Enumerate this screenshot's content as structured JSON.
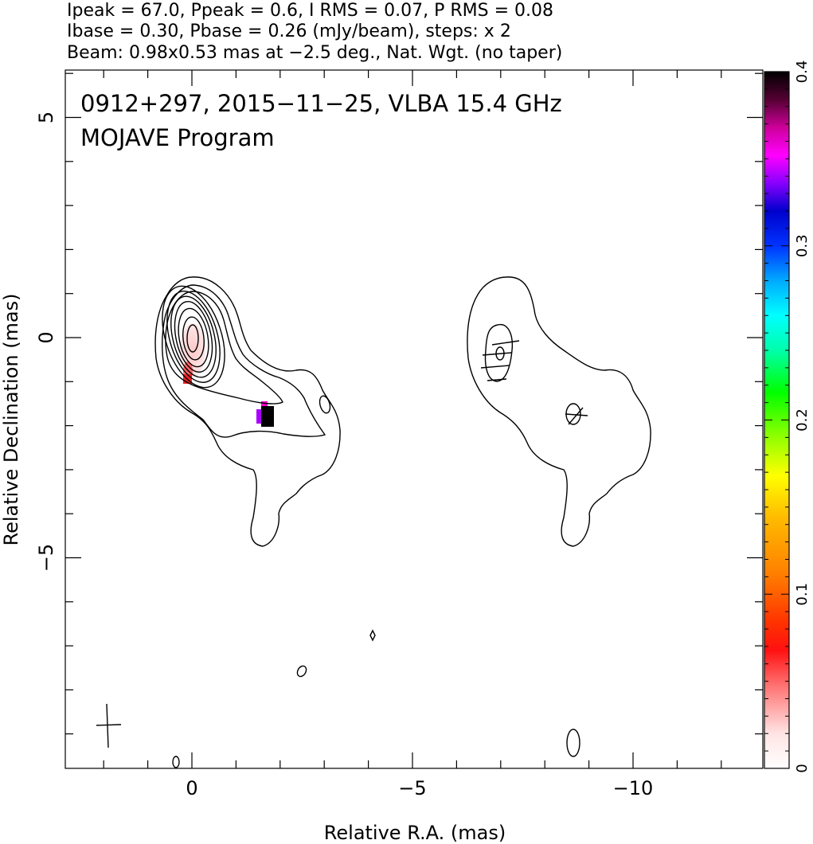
{
  "header": {
    "line1": "Ipeak = 67.0, Ppeak = 0.6, I RMS = 0.07, P RMS = 0.08",
    "line2": "Ibase = 0.30, Pbase = 0.26 (mJy/beam), steps: x 2",
    "line3": "Beam: 0.98x0.53 mas at −2.5 deg., Nat. Wgt. (no taper)"
  },
  "chart_data": {
    "type": "heatmap",
    "title": "0912+297, 2015−11−25, VLBA 15.4 GHz",
    "subtitle": "MOJAVE Program",
    "xlabel": "Relative R.A. (mas)",
    "ylabel": "Relative Declination (mas)",
    "xlim": [
      2.9,
      -13.0
    ],
    "ylim": [
      -9.8,
      6.1
    ],
    "x_ticks": [
      0,
      -5,
      -10
    ],
    "x_tick_labels": [
      "0",
      "−5",
      "−10"
    ],
    "y_ticks": [
      5,
      0,
      -5
    ],
    "y_tick_labels": [
      "5",
      "0",
      "−5"
    ],
    "grid": false,
    "colorbar": {
      "range": [
        0,
        0.4
      ],
      "ticks": [
        0,
        0.1,
        0.2,
        0.3,
        0.4
      ],
      "tick_labels": [
        "0",
        "0.1",
        "0.2",
        "0.3",
        "0.4"
      ],
      "position": "right"
    },
    "stokes_I_contours": {
      "base_mJy_per_beam": 0.3,
      "step_factor": 2,
      "peak_mJy_per_beam": 67.0,
      "rms_mJy_per_beam": 0.07
    },
    "polarized_intensity": {
      "base_mJy_per_beam": 0.26,
      "peak_mJy_per_beam": 0.6,
      "rms_mJy_per_beam": 0.08
    },
    "beam": {
      "major_mas": 0.98,
      "minor_mas": 0.53,
      "pa_deg": -2.5
    },
    "panels": [
      "Stokes I contours with fractional polarization colour",
      "Lowest contour with EVPA ticks (offset by −7 mas in R.A.)"
    ]
  }
}
